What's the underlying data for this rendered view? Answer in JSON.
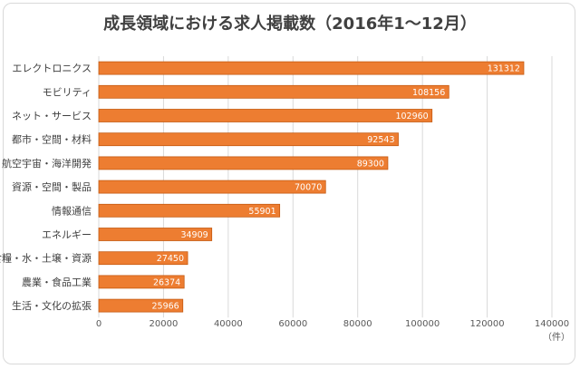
{
  "chart_data": {
    "type": "bar",
    "orientation": "horizontal",
    "title": "成長領域における求人掲載数（2016年1〜12月）",
    "categories": [
      "エレクトロニクス",
      "モビリティ",
      "ネット・サービス",
      "都市・空間・材料",
      "航空宇宙・海洋開発",
      "資源・空間・製品",
      "情報通信",
      "エネルギー",
      "食糧・水・土壌・資源",
      "農業・食品工業",
      "生活・文化の拡張"
    ],
    "values": [
      131312,
      108156,
      102960,
      92543,
      89300,
      70070,
      55901,
      34909,
      27450,
      26374,
      25966
    ],
    "xticks": [
      "0",
      "20000",
      "40000",
      "60000",
      "80000",
      "100000",
      "120000",
      "140000"
    ],
    "xlim": [
      0,
      140000
    ],
    "unit_label": "（件）",
    "bar_color": "#ED7D31",
    "grid": true
  }
}
